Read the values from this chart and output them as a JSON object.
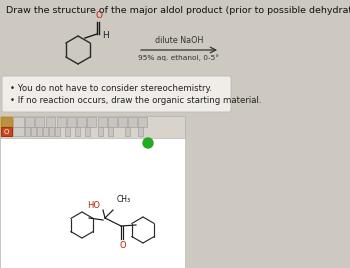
{
  "title_text": "Draw the structure of the major aldol product (prior to possible dehydration) of the following reaction.",
  "conditions_line1": "dilute NaOH",
  "conditions_line2": "95% aq. ethanol, 0-5°",
  "bullet1": "You do not have to consider stereochemistry.",
  "bullet2": "If no reaction occurs, draw the organic starting material.",
  "bg_color": "#cdc8c0",
  "white_box_bg": "#ffffff",
  "title_fontsize": 6.8,
  "body_fontsize": 6.2,
  "oh_color": "#bb2200",
  "o_color": "#bb2200",
  "bond_color": "#1a1a1a",
  "ring_color": "#2a2a2a",
  "toolbar_bg": "#d8d3cb",
  "bullet_box_bg": "#f0ede8",
  "bullet_box_edge": "#bbbbbb"
}
